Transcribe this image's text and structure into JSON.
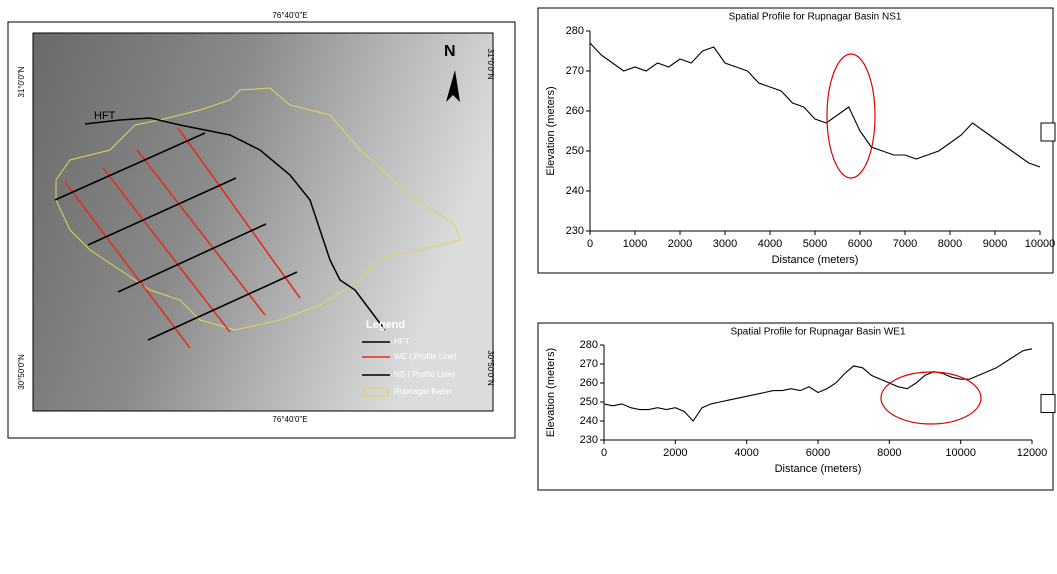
{
  "map": {
    "x_label_top": "76°40'0\"E",
    "x_label_bottom": "76°40'0\"E",
    "y_label_top_left": "31°0'0\"N",
    "y_label_top_right": "31°0'0\"N",
    "y_label_bottom_left": "30°50'0\"N",
    "y_label_bottom_right": "30°50'0\"N",
    "north": "N",
    "fault_label": "HFT",
    "legend": {
      "title": "Legend",
      "items": [
        "HFT",
        "WE ( Profile Line)",
        "NS ( Profile Line)",
        "Rupnagar Basin"
      ]
    }
  },
  "chart_data": [
    {
      "type": "line",
      "title": "Spatial Profile for Rupnagar Basin NS1",
      "x_label": "Distance (meters)",
      "y_label": "Elevation (meters)",
      "color": "#000000",
      "x": [
        0,
        250,
        500,
        750,
        1000,
        1250,
        1500,
        1750,
        2000,
        2250,
        2500,
        2750,
        3000,
        3250,
        3500,
        3750,
        4000,
        4250,
        4500,
        4750,
        5000,
        5250,
        5500,
        5750,
        6000,
        6250,
        6500,
        6750,
        7000,
        7250,
        7500,
        7750,
        8000,
        8250,
        8500,
        8750,
        9000,
        9250,
        9500,
        9750,
        10000
      ],
      "values": [
        277,
        274,
        272,
        270,
        271,
        270,
        272,
        271,
        273,
        272,
        275,
        276,
        272,
        271,
        270,
        267,
        266,
        265,
        262,
        261,
        258,
        257,
        259,
        261,
        255,
        251,
        250,
        249,
        249,
        248,
        249,
        250,
        252,
        254,
        257,
        255,
        253,
        251,
        249,
        247,
        246
      ],
      "xlim": [
        0,
        10000
      ],
      "xticks": [
        0,
        1000,
        2000,
        3000,
        4000,
        5000,
        6000,
        7000,
        8000,
        9000,
        10000
      ],
      "ylim": [
        230,
        280
      ],
      "yticks": [
        230,
        240,
        250,
        260,
        270,
        280
      ]
    },
    {
      "type": "line",
      "title": "Spatial Profile for Rupnagar Basin WE1",
      "x_label": "Distance (meters)",
      "y_label": "Elevation (meters)",
      "color": "#000000",
      "x": [
        0,
        250,
        500,
        750,
        1000,
        1250,
        1500,
        1750,
        2000,
        2250,
        2500,
        2750,
        3000,
        3250,
        3500,
        3750,
        4000,
        4250,
        4500,
        4750,
        5000,
        5250,
        5500,
        5750,
        6000,
        6250,
        6500,
        6750,
        7000,
        7250,
        7500,
        7750,
        8000,
        8250,
        8500,
        8750,
        9000,
        9250,
        9500,
        9750,
        10000,
        10250,
        10500,
        10750,
        11000,
        11250,
        11500,
        11750,
        12000
      ],
      "values": [
        249,
        248,
        249,
        247,
        246,
        246,
        247,
        246,
        247,
        245,
        240,
        247,
        249,
        250,
        251,
        252,
        253,
        254,
        255,
        256,
        256,
        257,
        256,
        258,
        255,
        257,
        260,
        265,
        269,
        268,
        264,
        262,
        260,
        258,
        257,
        260,
        264,
        266,
        265,
        263,
        262,
        262,
        264,
        266,
        268,
        271,
        274,
        277,
        278
      ],
      "xlim": [
        0,
        12000
      ],
      "xticks": [
        0,
        2000,
        4000,
        6000,
        8000,
        10000,
        12000
      ],
      "ylim": [
        230,
        280
      ],
      "yticks": [
        230,
        240,
        250,
        260,
        270,
        280
      ]
    }
  ]
}
